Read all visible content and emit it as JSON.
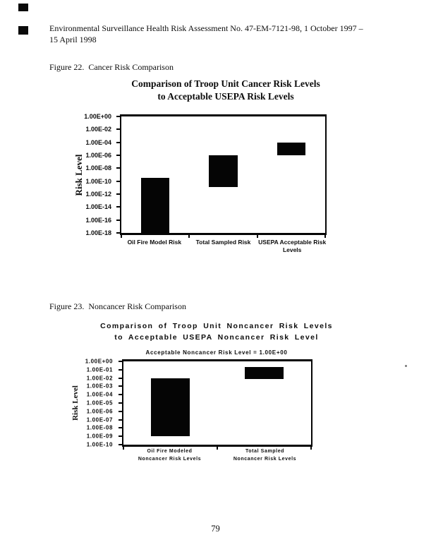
{
  "document": {
    "header": "Environmental Surveillance Health Risk Assessment No. 47-EM-7121-98, 1 October 1997 –\n15 April 1998",
    "page_number": "79"
  },
  "figures": [
    {
      "caption": "Figure 22.  Cancer Risk Comparison"
    },
    {
      "caption": "Figure 23.  Noncancer Risk Comparison"
    }
  ],
  "chart_data": [
    {
      "type": "bar",
      "subtype": "floating-range-bars",
      "title": "Comparison of Troop Unit Cancer Risk Levels\nto Acceptable USEPA Risk Levels",
      "ylabel": "Risk Level",
      "yscale": "log",
      "ylim": [
        1e-18,
        1.0
      ],
      "yticks": [
        "1.00E+00",
        "1.00E-02",
        "1.00E-04",
        "1.00E-06",
        "1.00E-08",
        "1.00E-10",
        "1.00E-12",
        "1.00E-14",
        "1.00E-16",
        "1.00E-18"
      ],
      "grid": false,
      "legend": false,
      "bar_color": "#050505",
      "bar_width_pct": 14,
      "bars": [
        {
          "label": "Oil Fire Model Risk",
          "low": 1e-18,
          "high": 3.5e-10
        },
        {
          "label": "Total Sampled Risk",
          "low": 1.2e-11,
          "high": 1e-06
        },
        {
          "label": "USEPA Acceptable Risk\nLevels",
          "low": 1e-06,
          "high": 0.0001
        }
      ]
    },
    {
      "type": "bar",
      "subtype": "floating-range-bars",
      "title": "Comparison of Troop Unit Noncancer Risk Levels\nto Acceptable USEPA Noncancer Risk Level",
      "annotation": "Acceptable Noncancer Risk Level = 1.00E+00",
      "ylabel": "Risk Level",
      "yscale": "log",
      "ylim": [
        1e-10,
        1.0
      ],
      "yticks": [
        "1.00E+00",
        "1.00E-01",
        "1.00E-02",
        "1.00E-03",
        "1.00E-04",
        "1.00E-05",
        "1.00E-06",
        "1.00E-07",
        "1.00E-08",
        "1.00E-09",
        "1.00E-10"
      ],
      "grid": false,
      "legend": false,
      "bar_color": "#050505",
      "bar_width_pct": 21,
      "bars": [
        {
          "label": "Oil Fire Modeled\nNoncancer Risk Levels",
          "low": 1e-09,
          "high": 0.01
        },
        {
          "label": "Total Sampled\nNoncancer Risk Levels",
          "low": 0.007,
          "high": 0.2
        }
      ]
    }
  ]
}
